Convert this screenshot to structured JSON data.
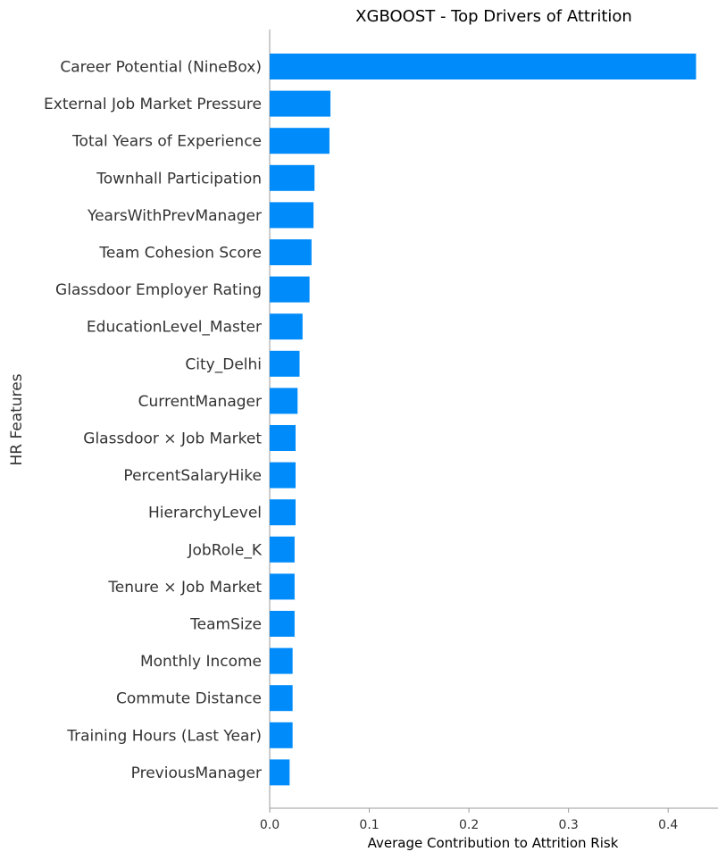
{
  "chart_data": {
    "type": "bar",
    "orientation": "horizontal",
    "title": "XGBOOST - Top Drivers of Attrition",
    "xlabel": "Average Contribution to Attrition Risk",
    "ylabel": "HR Features",
    "xlim": [
      0,
      0.45
    ],
    "xticks": [
      0.0,
      0.1,
      0.2,
      0.3,
      0.4
    ],
    "xtick_labels": [
      "0.0",
      "0.1",
      "0.2",
      "0.3",
      "0.4"
    ],
    "grid": false,
    "bar_color": "#008bfb",
    "categories": [
      "Career Potential (NineBox)",
      "External Job Market Pressure",
      "Total Years of Experience",
      "Townhall Participation",
      "YearsWithPrevManager",
      "Team Cohesion Score",
      "Glassdoor Employer Rating",
      "EducationLevel_Master",
      "City_Delhi",
      "CurrentManager",
      "Glassdoor × Job Market",
      "PercentSalaryHike",
      "HierarchyLevel",
      "JobRole_K",
      "Tenure × Job Market",
      "TeamSize",
      "Monthly Income",
      "Commute Distance",
      "Training Hours (Last Year)",
      "PreviousManager"
    ],
    "values": [
      0.428,
      0.061,
      0.06,
      0.045,
      0.044,
      0.042,
      0.04,
      0.033,
      0.03,
      0.028,
      0.026,
      0.026,
      0.026,
      0.025,
      0.025,
      0.025,
      0.023,
      0.023,
      0.023,
      0.02
    ]
  }
}
